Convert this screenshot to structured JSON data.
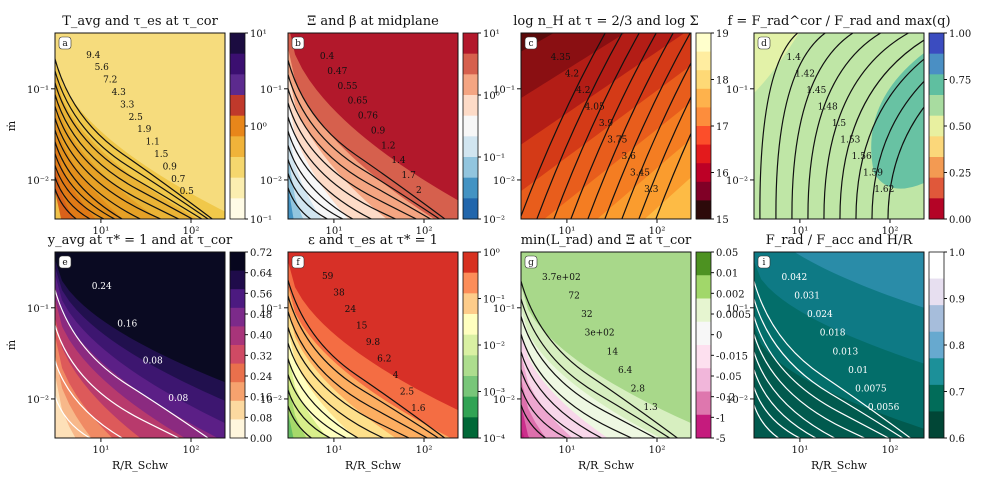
{
  "figure": {
    "xlabel": "R/R_Schw",
    "ylabel": "ṁ",
    "xticks": [
      "10¹",
      "10²"
    ],
    "yticks": [
      "10⁻¹",
      "10⁻²"
    ]
  },
  "chart_data": [
    {
      "type": "heatmap",
      "letter": "a",
      "title": "T_avg and τ_es at τ_cor",
      "xlabel": "",
      "ylabel": "ṁ",
      "xscale": "log",
      "yscale": "log",
      "colormap": [
        "#1b0c40",
        "#3b0f70",
        "#5c2a8e",
        "#c0392b",
        "#e8861a",
        "#f0b33a",
        "#f5d76e",
        "#fbeeb0",
        "#fffbe6"
      ],
      "fill_colors": [
        "#f6dc7d",
        "#f0c84a",
        "#eab335",
        "#e6a126",
        "#e3901c",
        "#e07a16",
        "#d9611a",
        "#f0c24a"
      ],
      "colorbar": {
        "scale": "log",
        "ticks": [
          "10¹",
          "10⁰",
          "10⁻¹"
        ]
      },
      "contour_labels": [
        "9.4",
        "5.6",
        "7.2",
        "4.3",
        "3.3",
        "2.5",
        "1.9",
        "1.1",
        "1.5",
        "0.9",
        "0.7",
        "0.5"
      ],
      "line_color": "#111111"
    },
    {
      "type": "heatmap",
      "letter": "b",
      "title": "Ξ and β at midplane",
      "xlabel": "",
      "ylabel": "",
      "xscale": "log",
      "yscale": "log",
      "colormap": [
        "#b2182b",
        "#d6604d",
        "#f4a582",
        "#fddbc7",
        "#f7f7f7",
        "#d1e5f0",
        "#92c5de",
        "#4393c3",
        "#2166ac"
      ],
      "fill_colors": [
        "#b2182b",
        "#d6604d",
        "#f4a582",
        "#fddbc7",
        "#f7f7f7",
        "#d1e5f0",
        "#92c5de",
        "#4393c3"
      ],
      "colorbar": {
        "scale": "log",
        "ticks": [
          "10¹",
          "10⁰",
          "10⁻¹",
          "10⁻²"
        ]
      },
      "contour_labels": [
        "0.4",
        "0.47",
        "0.55",
        "0.65",
        "0.76",
        "0.9",
        "1.2",
        "1.4",
        "1.7",
        "2"
      ],
      "line_color": "#111111"
    },
    {
      "type": "heatmap",
      "letter": "c",
      "title": "log n_H at τ = 2/3 and log Σ",
      "xlabel": "",
      "ylabel": "",
      "xscale": "log",
      "yscale": "log",
      "colormap": [
        "#ffffcc",
        "#ffeda0",
        "#fed976",
        "#feb24c",
        "#fd8d3c",
        "#fc4e2a",
        "#e31a1c",
        "#bd0026",
        "#800026",
        "#2d0a0a"
      ],
      "fill_colors": [
        "#5c0a0a",
        "#8a0f12",
        "#b31d16",
        "#d43a17",
        "#e85d1c",
        "#f47d22",
        "#fa9c2e",
        "#fdbb45",
        "#fed976"
      ],
      "colorbar": {
        "scale": "linear",
        "ticks": [
          "19",
          "18",
          "17",
          "16",
          "15"
        ]
      },
      "contour_labels": [
        "4.35",
        "4.2",
        "4.2",
        "4.05",
        "3.9",
        "3.75",
        "3.6",
        "3.45",
        "3.3"
      ],
      "line_color": "#111111"
    },
    {
      "type": "heatmap",
      "letter": "d",
      "title": "f = F_rad^cor / F_rad and max(q)",
      "xlabel": "",
      "ylabel": "",
      "xscale": "log",
      "yscale": "log",
      "colormap": [
        "#3b4cc0",
        "#4a8fc4",
        "#5fbfa0",
        "#a8dca0",
        "#e8f0a0",
        "#fbd77a",
        "#f39a52",
        "#e0583a",
        "#b40426"
      ],
      "fill_colors": [
        "#bfe6a6",
        "#abdfa0",
        "#68c2a3"
      ],
      "colorbar": {
        "scale": "linear",
        "ticks": [
          "1.00",
          "0.75",
          "0.50",
          "0.25",
          "0.00"
        ]
      },
      "contour_labels": [
        "1.4",
        "1.42",
        "1.45",
        "1.48",
        "1.5",
        "1.53",
        "1.56",
        "1.59",
        "1.62"
      ],
      "line_color": "#111111"
    },
    {
      "type": "heatmap",
      "letter": "e",
      "title": "y_avg at τ* = 1 and at τ_cor",
      "xlabel": "R/R_Schw",
      "ylabel": "ṁ",
      "xscale": "log",
      "yscale": "log",
      "colormap": [
        "#07061e",
        "#1f0b4a",
        "#4c1a80",
        "#7c2a8a",
        "#a8347a",
        "#cf4a64",
        "#e9704c",
        "#f6a26e",
        "#fcd9a0",
        "#fff6dd"
      ],
      "fill_colors": [
        "#0a0a22",
        "#21104e",
        "#3d1670",
        "#5b1f86",
        "#8b2a80",
        "#b83a6c",
        "#dd5a5a",
        "#f08a64",
        "#f7b88a",
        "#fde0b8"
      ],
      "colorbar": {
        "scale": "linear",
        "ticks": [
          "0.72",
          "0.64",
          "0.56",
          "0.48",
          "0.40",
          "0.32",
          "0.24",
          "0.16",
          "0.08",
          "0.00"
        ]
      },
      "contour_labels": [
        "0.24",
        "0.16",
        "0.08",
        "0.08"
      ],
      "line_color": "#ffffff"
    },
    {
      "type": "heatmap",
      "letter": "f",
      "title": "ε and τ_es at τ* = 1",
      "xlabel": "R/R_Schw",
      "ylabel": "",
      "xscale": "log",
      "yscale": "log",
      "colormap": [
        "#d7301f",
        "#fc8d59",
        "#fdcc8a",
        "#ffffbf",
        "#d9f0a3",
        "#addd8e",
        "#78c679",
        "#31a354",
        "#006837"
      ],
      "fill_colors": [
        "#d73027",
        "#f46d43",
        "#fdae61",
        "#fee08b",
        "#ffffbf",
        "#d9ef8b",
        "#a6d96a",
        "#66bd63"
      ],
      "colorbar": {
        "scale": "log",
        "ticks": [
          "10⁰",
          "10⁻¹",
          "10⁻²",
          "10⁻³",
          "10⁻⁴"
        ]
      },
      "contour_labels": [
        "59",
        "38",
        "24",
        "15",
        "9.8",
        "6.2",
        "4",
        "2.5",
        "1.6"
      ],
      "line_color": "#111111"
    },
    {
      "type": "heatmap",
      "letter": "g",
      "title": "min(L_rad) and Ξ at τ_cor",
      "xlabel": "R/R_Schw",
      "ylabel": "",
      "xscale": "symlog",
      "yscale": "log",
      "colormap": [
        "#4d9221",
        "#a1d76a",
        "#e6f5d0",
        "#f7f7f7",
        "#fde0ef",
        "#f1b6da",
        "#de77ae",
        "#c51b7d"
      ],
      "fill_colors": [
        "#a8d88a",
        "#d7efc0",
        "#eef8e2",
        "#f8d7ea",
        "#eea6cf",
        "#dd6fac",
        "#cc2f8b",
        "#c51b7d"
      ],
      "colorbar": {
        "scale": "symlog",
        "ticks": [
          "0.05",
          "0.01",
          "0.002",
          "0.0005",
          "0",
          "-0.015",
          "-0.05",
          "-0.2",
          "-1",
          "-5"
        ]
      },
      "contour_labels": [
        "3.7e+02",
        "72",
        "32",
        "3e+02",
        "14",
        "6.4",
        "2.8",
        "1.3"
      ],
      "line_color": "#111111"
    },
    {
      "type": "heatmap",
      "letter": "i",
      "title": "F_rad / F_acc and H/R",
      "xlabel": "R/R_Schw",
      "ylabel": "",
      "xscale": "log",
      "yscale": "log",
      "colormap": [
        "#ffffff",
        "#e7dff0",
        "#a6bddb",
        "#67a9cf",
        "#1c9099",
        "#016c59",
        "#014636"
      ],
      "fill_colors": [
        "#2a8ca8",
        "#0e7a85",
        "#036e6a",
        "#015a4e"
      ],
      "colorbar": {
        "scale": "linear",
        "ticks": [
          "1.0",
          "0.9",
          "0.8",
          "0.7",
          "0.6"
        ]
      },
      "contour_labels": [
        "0.042",
        "0.031",
        "0.024",
        "0.018",
        "0.013",
        "0.01",
        "0.0075",
        "0.0056"
      ],
      "line_color": "#ffffff"
    }
  ]
}
